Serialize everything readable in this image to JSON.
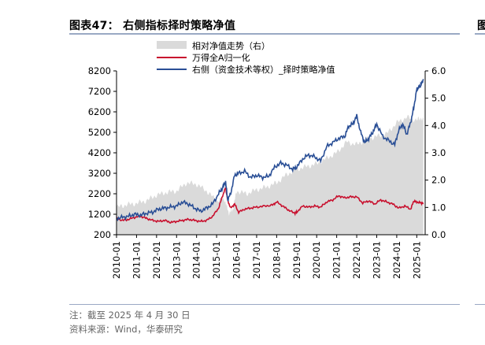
{
  "header": {
    "title": "图表47：  右侧指标择时策略净值",
    "edge_char": "图"
  },
  "footer": {
    "note": "注：截至 2025 年 4 月 30 日",
    "source": "资料来源：Wind，华泰研究"
  },
  "colors": {
    "area": "#dadada",
    "red": "#c8102e",
    "blue": "#2a4f96",
    "rule": "#9aa9c4"
  },
  "chart_data": {
    "type": "line",
    "title": "右侧指标择时策略净值",
    "x_ticks": [
      "2010-01",
      "2011-01",
      "2012-01",
      "2013-01",
      "2014-01",
      "2015-01",
      "2016-01",
      "2017-01",
      "2018-01",
      "2019-01",
      "2020-01",
      "2021-01",
      "2022-01",
      "2023-01",
      "2024-01",
      "2025-01"
    ],
    "y_left": {
      "range": [
        200,
        8200
      ],
      "ticks": [
        8200,
        7200,
        6200,
        5200,
        4200,
        3200,
        2200,
        1200,
        200
      ]
    },
    "y_right": {
      "range": [
        0.0,
        6.0
      ],
      "ticks": [
        "6.0",
        "5.0",
        "4.0",
        "3.0",
        "2.0",
        "1.0",
        "0.0"
      ]
    },
    "legend": [
      {
        "name": "相对净值走势（右）",
        "style": "area"
      },
      {
        "name": "万得全A归一化",
        "style": "line-red"
      },
      {
        "name": "右侧（资金技术等权）_择时策略净值",
        "style": "line-blue"
      }
    ],
    "series": [
      {
        "name": "相对净值走势（右）",
        "axis": "right",
        "x": [
          2010.0,
          2010.5,
          2011.0,
          2011.5,
          2012.0,
          2012.5,
          2013.0,
          2013.5,
          2014.0,
          2014.5,
          2015.0,
          2015.4,
          2015.6,
          2015.8,
          2016.0,
          2016.5,
          2017.0,
          2017.5,
          2018.0,
          2018.5,
          2019.0,
          2019.5,
          2020.0,
          2020.5,
          2021.0,
          2021.5,
          2022.0,
          2022.5,
          2023.0,
          2023.5,
          2024.0,
          2024.5,
          2025.0,
          2025.33
        ],
        "values": [
          1.0,
          1.1,
          1.15,
          1.25,
          1.45,
          1.55,
          1.6,
          1.9,
          1.85,
          1.6,
          1.25,
          1.3,
          0.8,
          0.9,
          1.6,
          1.5,
          1.65,
          1.75,
          1.9,
          2.2,
          2.4,
          2.5,
          2.6,
          2.8,
          3.0,
          3.4,
          3.3,
          3.5,
          3.6,
          3.7,
          4.1,
          4.3,
          4.2,
          4.3
        ]
      },
      {
        "name": "万得全A归一化",
        "axis": "left",
        "x": [
          2010.0,
          2010.3,
          2010.6,
          2010.9,
          2011.2,
          2011.5,
          2011.8,
          2012.1,
          2012.4,
          2012.7,
          2013.0,
          2013.3,
          2013.6,
          2013.9,
          2014.2,
          2014.5,
          2014.8,
          2015.1,
          2015.3,
          2015.45,
          2015.55,
          2015.7,
          2015.9,
          2016.1,
          2016.4,
          2016.7,
          2017.0,
          2017.4,
          2017.8,
          2018.0,
          2018.3,
          2018.6,
          2018.9,
          2019.0,
          2019.3,
          2019.6,
          2019.9,
          2020.2,
          2020.5,
          2020.8,
          2021.1,
          2021.4,
          2021.7,
          2022.0,
          2022.3,
          2022.6,
          2022.9,
          2023.2,
          2023.5,
          2023.8,
          2024.1,
          2024.4,
          2024.7,
          2024.85,
          2025.0,
          2025.2,
          2025.33
        ],
        "values": [
          1000,
          900,
          950,
          1050,
          1100,
          1000,
          900,
          850,
          900,
          800,
          850,
          900,
          950,
          900,
          850,
          900,
          1100,
          1500,
          2100,
          2500,
          1900,
          1500,
          1700,
          1300,
          1450,
          1500,
          1550,
          1600,
          1650,
          1800,
          1600,
          1400,
          1250,
          1300,
          1600,
          1550,
          1600,
          1550,
          1800,
          1900,
          2100,
          2000,
          2050,
          2050,
          1750,
          1850,
          1700,
          1900,
          1800,
          1700,
          1500,
          1600,
          1450,
          1850,
          1800,
          1750,
          1750
        ]
      },
      {
        "name": "右侧（资金技术等权）_择时策略净值",
        "axis": "left",
        "x": [
          2010.0,
          2010.3,
          2010.6,
          2010.9,
          2011.2,
          2011.5,
          2011.8,
          2012.1,
          2012.4,
          2012.7,
          2013.0,
          2013.3,
          2013.6,
          2013.9,
          2014.2,
          2014.5,
          2014.8,
          2015.1,
          2015.3,
          2015.45,
          2015.55,
          2015.7,
          2015.9,
          2016.1,
          2016.4,
          2016.7,
          2017.0,
          2017.3,
          2017.6,
          2017.9,
          2018.2,
          2018.5,
          2018.8,
          2019.0,
          2019.3,
          2019.6,
          2019.9,
          2020.2,
          2020.5,
          2020.8,
          2021.1,
          2021.4,
          2021.6,
          2021.8,
          2022.0,
          2022.2,
          2022.4,
          2022.6,
          2022.8,
          2023.0,
          2023.3,
          2023.6,
          2023.9,
          2024.1,
          2024.3,
          2024.5,
          2024.7,
          2024.85,
          2025.0,
          2025.1,
          2025.2,
          2025.33
        ],
        "values": [
          1000,
          1050,
          1100,
          1200,
          1150,
          1250,
          1300,
          1450,
          1500,
          1550,
          1600,
          1800,
          1700,
          1500,
          1350,
          1500,
          1700,
          2200,
          2500,
          2800,
          1900,
          2200,
          3100,
          3200,
          3300,
          3000,
          3100,
          3000,
          3050,
          3500,
          3700,
          3600,
          3400,
          3500,
          3900,
          4100,
          4000,
          3800,
          4500,
          4700,
          4900,
          5000,
          5500,
          5600,
          6000,
          5200,
          4700,
          4900,
          5200,
          5600,
          5000,
          4800,
          4600,
          5300,
          5600,
          5100,
          5700,
          6400,
          7300,
          7400,
          7500,
          7800
        ]
      }
    ]
  }
}
